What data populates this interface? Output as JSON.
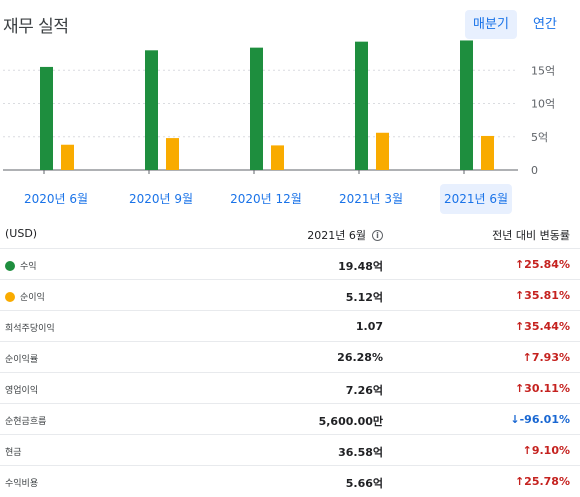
{
  "header": {
    "title": "재무 실적",
    "toggle_quarterly": "매분기",
    "toggle_annual": "연간"
  },
  "colors": {
    "revenue": "#1e8e3e",
    "net_income": "#f9ab00",
    "accent": "#1a73e8",
    "increase": "#c5221f",
    "decrease": "#1967d2"
  },
  "chart_data": {
    "type": "bar",
    "categories": [
      "2020년 6월",
      "2020년 9월",
      "2020년 12월",
      "2021년 3월",
      "2021년 6월"
    ],
    "series": [
      {
        "name": "수익",
        "values": [
          15.5,
          18.0,
          18.4,
          19.3,
          19.48
        ]
      },
      {
        "name": "순이익",
        "values": [
          3.8,
          4.8,
          3.7,
          5.6,
          5.12
        ]
      }
    ],
    "yticks": [
      {
        "value": 0,
        "label": "0"
      },
      {
        "value": 5,
        "label": "5억"
      },
      {
        "value": 10,
        "label": "10억"
      },
      {
        "value": 15,
        "label": "15억"
      }
    ],
    "ylim": [
      0,
      20
    ],
    "grid": true,
    "selected_index": 4
  },
  "table": {
    "head": {
      "currency": "(USD)",
      "period": "2021년 6월",
      "info_icon": "info-icon",
      "change": "전년 대비 변동률"
    },
    "rows": [
      {
        "label": "수익",
        "value": "19.48억",
        "change": "25.84%",
        "direction": "up"
      },
      {
        "label": "순이익",
        "value": "5.12억",
        "change": "35.81%",
        "direction": "up"
      },
      {
        "label": "희석주당이익",
        "value": "1.07",
        "change": "35.44%",
        "direction": "up"
      },
      {
        "label": "순이익률",
        "value": "26.28%",
        "change": "7.93%",
        "direction": "up"
      },
      {
        "label": "영업이익",
        "value": "7.26억",
        "change": "30.11%",
        "direction": "up"
      },
      {
        "label": "순현금흐름",
        "value": "5,600.00만",
        "change": "-96.01%",
        "direction": "down"
      },
      {
        "label": "현금",
        "value": "36.58억",
        "change": "9.10%",
        "direction": "up"
      },
      {
        "label": "수익비용",
        "value": "5.66억",
        "change": "25.78%",
        "direction": "up"
      }
    ]
  }
}
